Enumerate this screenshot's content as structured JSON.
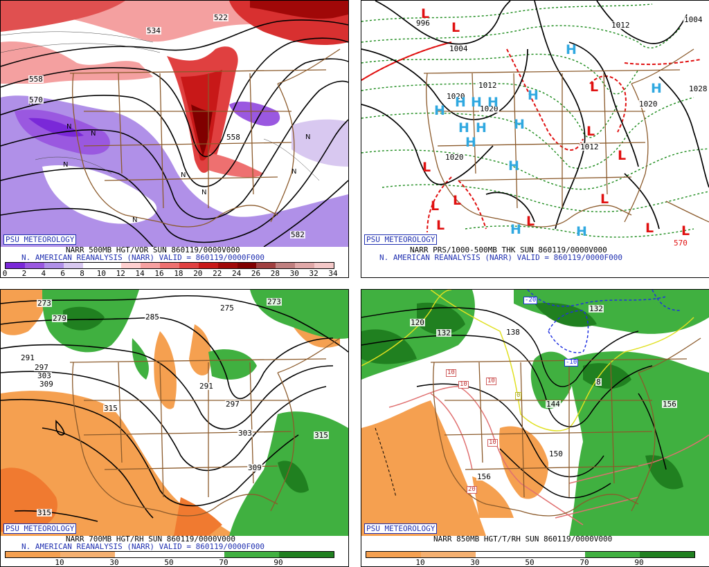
{
  "panels": [
    {
      "psu": "PSU METEOROLOGY",
      "title1": "NARR 500MB HGT/VOR SUN 860119/0000V000",
      "title2": "N. AMERICAN REANALYSIS (NARR) VALID = 860119/0000F000",
      "colorbar": {
        "colors": [
          "#7a28d8",
          "#9a58e0",
          "#b090e8",
          "#d8c8f0",
          "#ffffff",
          "#ffffff",
          "#ffd0d0",
          "#f6a0a0",
          "#ee7070",
          "#e04040",
          "#c81818",
          "#a00808",
          "#800000",
          "#a04040",
          "#c08080",
          "#e0a8a8",
          "#f4c8c8"
        ],
        "labels": [
          "0",
          "2",
          "4",
          "6",
          "8",
          "10",
          "12",
          "14",
          "16",
          "18",
          "20",
          "22",
          "24",
          "26",
          "28",
          "30",
          "32",
          "34"
        ]
      },
      "contour_labels": [
        "522",
        "534",
        "558",
        "570",
        "558",
        "582"
      ]
    },
    {
      "psu": "PSU METEOROLOGY",
      "title1": "NARR PRS/1000-500MB THK SUN 860119/0000V000",
      "title2": "N. AMERICAN REANALYSIS (NARR) VALID = 860119/0000F000",
      "contour_labels": [
        "996",
        "1004",
        "1012",
        "1020",
        "1020",
        "1012",
        "1004",
        "1020",
        "1028",
        "1020",
        "1012",
        "570"
      ]
    },
    {
      "psu": "PSU METEOROLOGY",
      "title1": "NARR 700MB HGT/RH SUN 860119/0000V000",
      "title2": "N. AMERICAN REANALYSIS (NARR) VALID = 860119/0000F000",
      "colorbar": {
        "colors": [
          "#f5a050",
          "#f5b070",
          "#ffffff",
          "#ffffff",
          "#40b040",
          "#208020"
        ],
        "labels": [
          "10",
          "30",
          "50",
          "70",
          "90"
        ]
      },
      "contour_labels": [
        "273",
        "279",
        "285",
        "275",
        "273",
        "291",
        "297",
        "303",
        "309",
        "315",
        "297",
        "303",
        "309",
        "315",
        "315",
        "291"
      ]
    },
    {
      "psu": "PSU METEOROLOGY",
      "title1": "NARR 850MB HGT/T/RH SUN 860119/0000V000",
      "colorbar": {
        "colors": [
          "#f5a050",
          "#f5b070",
          "#ffffff",
          "#ffffff",
          "#40b040",
          "#208020"
        ],
        "labels": [
          "10",
          "30",
          "50",
          "70",
          "90"
        ]
      },
      "contour_labels": [
        "120",
        "132",
        "138",
        "132",
        "144",
        "156",
        "150",
        "156",
        "-10",
        "-20",
        "10",
        "10",
        "10",
        "0",
        "10",
        "20",
        "8"
      ]
    }
  ],
  "colors": {
    "psu_blue": "#1f2fb0",
    "high": "#2fa8e0",
    "low": "#e01010",
    "border": "#8b5a2b"
  }
}
